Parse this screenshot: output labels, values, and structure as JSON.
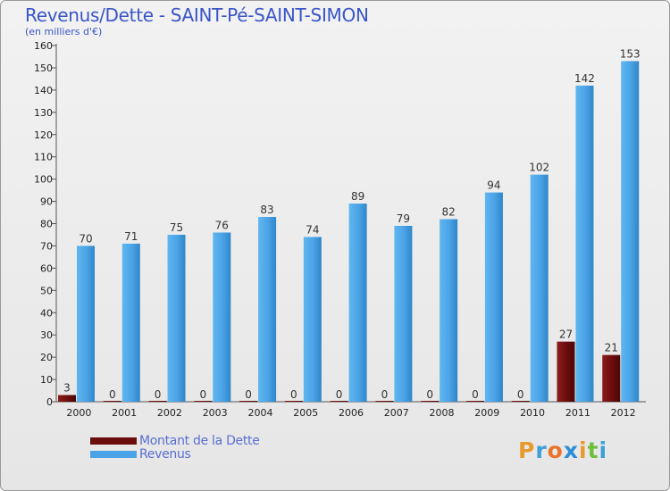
{
  "title": "Revenus/Dette - SAINT-Pé-SAINT-SIMON",
  "subtitle": "(en milliers d'€)",
  "chart_data": {
    "type": "bar",
    "categories": [
      "2000",
      "2001",
      "2002",
      "2003",
      "2004",
      "2005",
      "2006",
      "2007",
      "2008",
      "2009",
      "2010",
      "2011",
      "2012"
    ],
    "series": [
      {
        "name": "Montant de la Dette",
        "color": "#6b0d0d",
        "values": [
          3,
          0,
          0,
          0,
          0,
          0,
          0,
          0,
          0,
          0,
          0,
          27,
          21
        ]
      },
      {
        "name": "Revenus",
        "color": "#4aa3e6",
        "values": [
          70,
          71,
          75,
          76,
          83,
          74,
          89,
          79,
          82,
          94,
          102,
          142,
          153
        ]
      }
    ],
    "yticks": [
      0,
      10,
      20,
      30,
      40,
      50,
      60,
      70,
      80,
      90,
      100,
      110,
      120,
      130,
      140,
      150,
      160
    ],
    "ylim": [
      0,
      160
    ],
    "grid": false,
    "legend": "bottom-left"
  },
  "legend": {
    "dette_label": "Montant de la Dette",
    "revenus_label": "Revenus"
  },
  "logo": {
    "letters": [
      "P",
      "r",
      "o",
      "x",
      "i",
      "t",
      "i"
    ]
  }
}
